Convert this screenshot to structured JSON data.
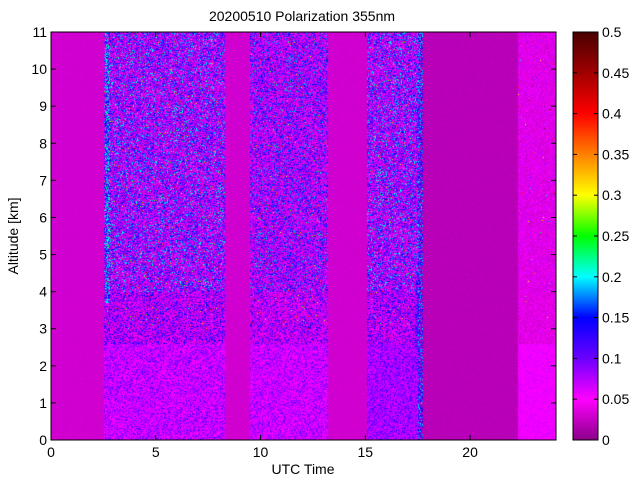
{
  "chart_data": {
    "type": "heatmap",
    "title": "20200510 Polarization 355nm",
    "xlabel": "UTC Time",
    "ylabel": "Altitude [km]",
    "xlim": [
      0,
      24.1
    ],
    "ylim": [
      0,
      11
    ],
    "x_ticks": [
      0,
      5,
      10,
      15,
      20
    ],
    "y_ticks": [
      0,
      1,
      2,
      3,
      4,
      5,
      6,
      7,
      8,
      9,
      10,
      11
    ],
    "colorbar": {
      "range": [
        0,
        0.5
      ],
      "ticks": [
        0,
        0.05,
        0.1,
        0.15,
        0.2,
        0.25,
        0.3,
        0.35,
        0.4,
        0.45,
        0.5
      ],
      "tick_labels": [
        "0",
        "0.05",
        "0.1",
        "0.15",
        "0.2",
        "0.25",
        "0.3",
        "0.35",
        "0.4",
        "0.45",
        "0.5"
      ],
      "colormap": [
        "#8a0089",
        "#ff00ff",
        "#6b00ff",
        "#0000ff",
        "#00ffff",
        "#00ff00",
        "#ffff00",
        "#ff8000",
        "#ff0000",
        "#a00000",
        "#4a0000"
      ]
    },
    "background_value": 0.02,
    "segments": [
      {
        "t_start": 0.0,
        "t_end": 2.55,
        "noise": 0.0,
        "low_value": 0.03
      },
      {
        "t_start": 2.55,
        "t_end": 8.3,
        "noise": 1.0,
        "low_value": 0.05
      },
      {
        "t_start": 8.3,
        "t_end": 9.5,
        "noise": 0.0,
        "low_value": 0.03
      },
      {
        "t_start": 9.5,
        "t_end": 13.2,
        "noise": 0.9,
        "low_value": 0.05
      },
      {
        "t_start": 13.2,
        "t_end": 15.1,
        "noise": 0.0,
        "low_value": 0.03
      },
      {
        "t_start": 15.1,
        "t_end": 17.6,
        "noise": 1.0,
        "low_value": 0.06
      },
      {
        "t_start": 17.6,
        "t_end": 22.3,
        "noise": 0.0,
        "low_value": 0.02
      },
      {
        "t_start": 22.3,
        "t_end": 24.1,
        "noise": 0.25,
        "low_value": 0.05
      }
    ],
    "features": [
      {
        "name": "high-depolarization-onset",
        "t": 2.7,
        "alt_min": 3.7,
        "alt_max": 11,
        "value": 0.18
      },
      {
        "name": "boundary-depolarization",
        "t": 17.5,
        "alt_min": 2.5,
        "alt_max": 4.5,
        "value": 0.12
      },
      {
        "name": "thin-bright-line",
        "t": 17.65,
        "alt_min": 0,
        "alt_max": 11,
        "value": 0.15
      }
    ]
  }
}
